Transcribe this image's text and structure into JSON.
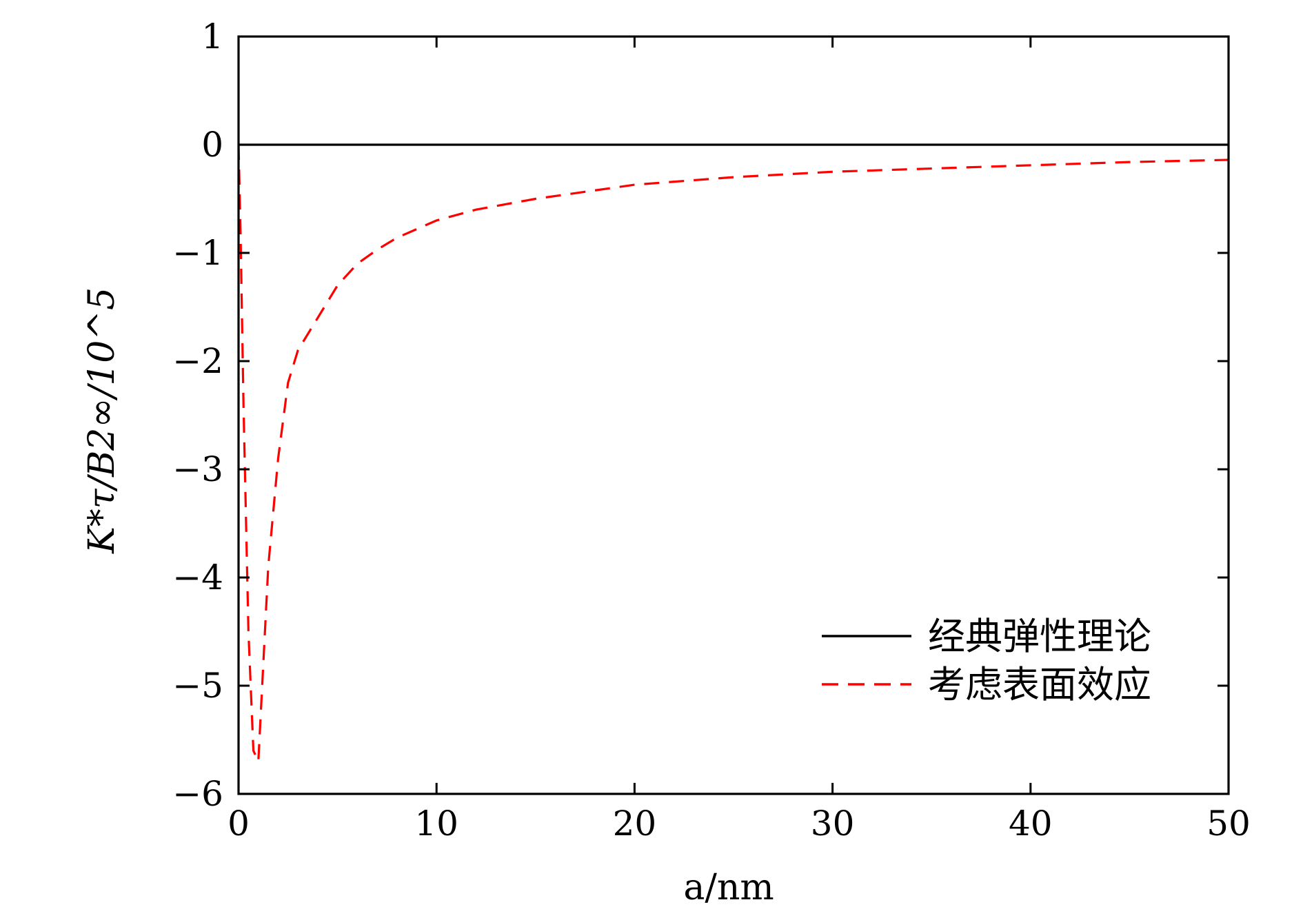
{
  "chart_data": {
    "type": "line",
    "xlabel": "a/nm",
    "ylabel": "K*τ/B2∞/10^5",
    "xlim": [
      0,
      50
    ],
    "ylim": [
      -6,
      1
    ],
    "xticks": [
      0,
      10,
      20,
      30,
      40,
      50
    ],
    "yticks": [
      1,
      0,
      -1,
      -2,
      -3,
      -4,
      -5,
      -6
    ],
    "xtick_labels": [
      "0",
      "10",
      "20",
      "30",
      "40",
      "50"
    ],
    "ytick_labels": [
      "1",
      "0",
      "−1",
      "−2",
      "−3",
      "−4",
      "−5",
      "−6"
    ],
    "grid": false,
    "legend_position": "bottom-right",
    "series": [
      {
        "name": "经典弹性理论",
        "color": "#000000",
        "style": "solid",
        "x": [
          0,
          5,
          10,
          15,
          20,
          25,
          30,
          35,
          40,
          45,
          50
        ],
        "y": [
          0,
          0,
          0,
          0,
          0,
          0,
          0,
          0,
          0,
          0,
          0
        ]
      },
      {
        "name": "考虑表面效应",
        "color": "#ff0000",
        "style": "dashed",
        "x": [
          0,
          0.1,
          0.25,
          0.5,
          0.75,
          1.0,
          1.25,
          1.5,
          2,
          2.5,
          3,
          4,
          5,
          6,
          7,
          8,
          10,
          12,
          15,
          20,
          25,
          30,
          35,
          40,
          45,
          50
        ],
        "y": [
          0,
          -0.8,
          -2.4,
          -4.5,
          -5.6,
          -5.7,
          -4.8,
          -3.9,
          -2.9,
          -2.2,
          -1.9,
          -1.6,
          -1.3,
          -1.1,
          -0.97,
          -0.86,
          -0.7,
          -0.6,
          -0.5,
          -0.37,
          -0.3,
          -0.25,
          -0.22,
          -0.19,
          -0.16,
          -0.14
        ]
      }
    ]
  }
}
